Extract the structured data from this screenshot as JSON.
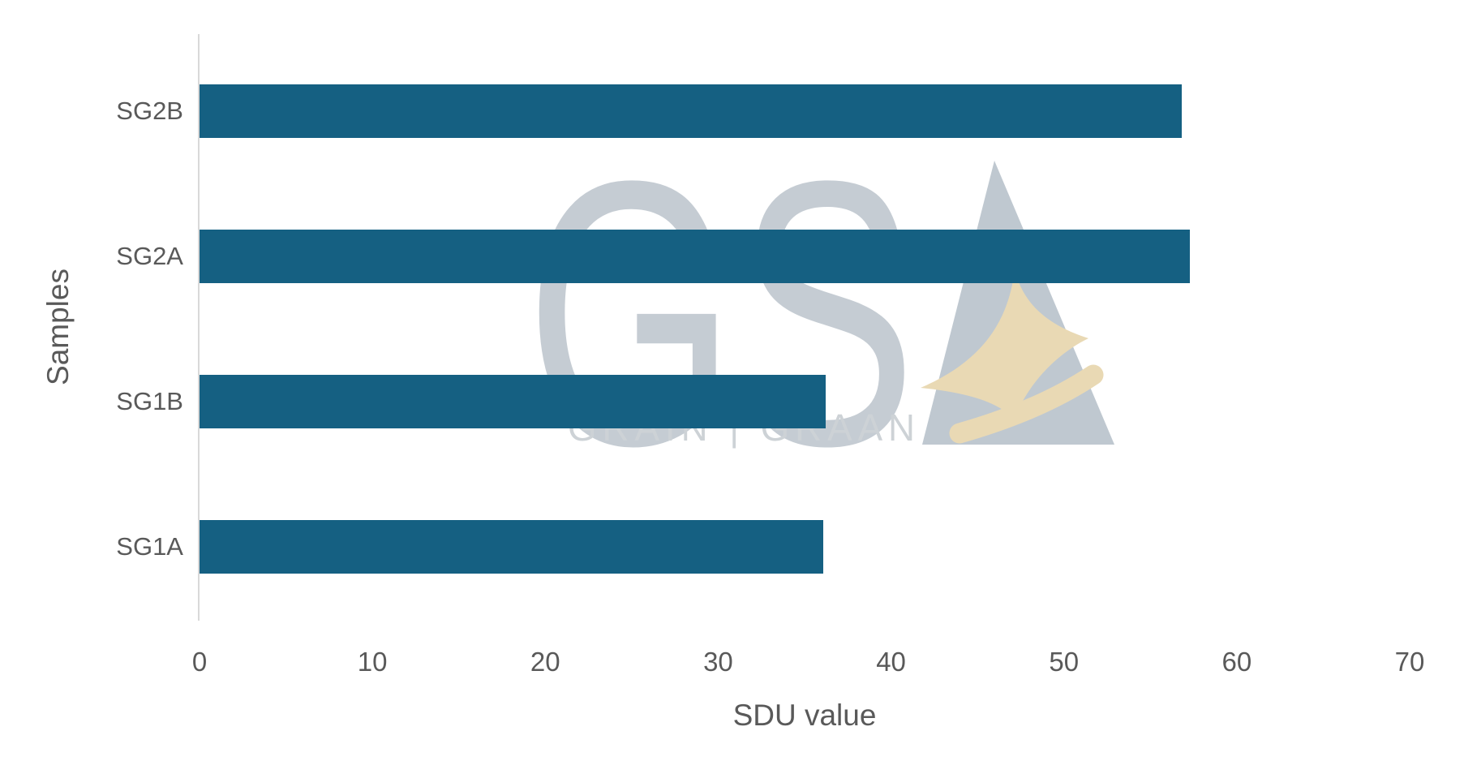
{
  "watermark": {
    "letters": "GS",
    "tagline": "GRAIN | GRAAN",
    "colors": {
      "letters": "#c5ccd3",
      "triangle": "#bfc8d0",
      "gold": "#e9d9b4",
      "tagline": "#cdd2d6"
    }
  },
  "chart_data": {
    "type": "bar",
    "orientation": "horizontal",
    "title": "",
    "categories": [
      "SG2B",
      "SG2A",
      "SG1B",
      "SG1A"
    ],
    "values": [
      56.8,
      57.3,
      36.2,
      36.1
    ],
    "xlabel": "SDU value",
    "ylabel": "Samples",
    "xlim": [
      0,
      70
    ],
    "xticks": [
      0,
      10,
      20,
      30,
      40,
      50,
      60,
      70
    ],
    "grid": false,
    "legend": false,
    "bar_color": "#156082",
    "axis_line_color": "#D9D9D9",
    "text_color": "#595959"
  }
}
